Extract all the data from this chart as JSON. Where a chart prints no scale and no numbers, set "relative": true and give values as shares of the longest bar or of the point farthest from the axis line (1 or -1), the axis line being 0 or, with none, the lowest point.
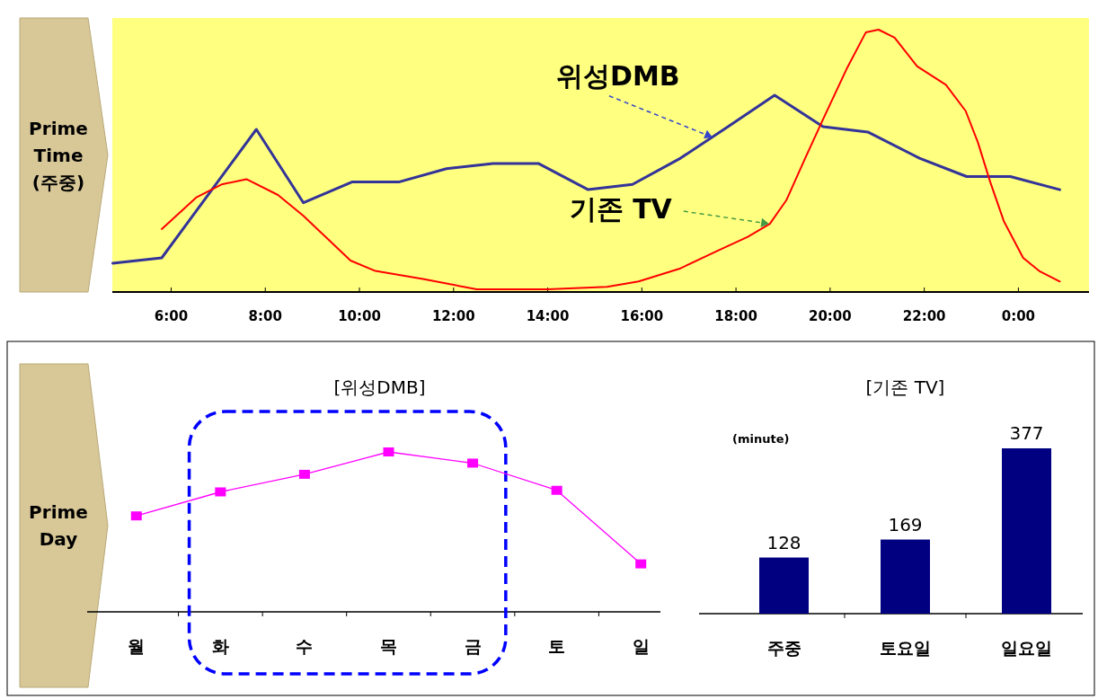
{
  "chart_data": [
    {
      "type": "line",
      "relative": true,
      "xlim": [
        4.75,
        25.5
      ],
      "xticks": [
        {
          "value": 6,
          "label": "6:00"
        },
        {
          "value": 8,
          "label": "8:00"
        },
        {
          "value": 10,
          "label": "10:00"
        },
        {
          "value": 12,
          "label": "12:00"
        },
        {
          "value": 14,
          "label": "14:00"
        },
        {
          "value": 16,
          "label": "16:00"
        },
        {
          "value": 18,
          "label": "18:00"
        },
        {
          "value": 20,
          "label": "20:00"
        },
        {
          "value": 22,
          "label": "22:00"
        },
        {
          "value": 24,
          "label": "0:00"
        }
      ],
      "tick_labels": "x",
      "series": [
        {
          "color": "#333399",
          "x": [
            4.76,
            5.8,
            7.81,
            8.81,
            9.85,
            10.85,
            11.85,
            12.84,
            13.8,
            14.86,
            15.8,
            16.82,
            17.83,
            18.82,
            19.85,
            20.8,
            21.9,
            22.9,
            23.83,
            24.88
          ],
          "values": [
            0.11,
            0.13,
            0.62,
            0.34,
            0.42,
            0.42,
            0.47,
            0.49,
            0.49,
            0.39,
            0.41,
            0.51,
            0.63,
            0.75,
            0.63,
            0.61,
            0.51,
            0.44,
            0.44,
            0.39
          ]
        },
        {
          "color": "#ff0000",
          "x": [
            5.8,
            6.53,
            7.07,
            7.6,
            8.27,
            8.81,
            9.34,
            9.81,
            10.34,
            11.35,
            12.49,
            14.0,
            15.26,
            15.93,
            16.82,
            17.64,
            18.25,
            18.72,
            19.07,
            19.47,
            19.88,
            20.35,
            20.76,
            21.03,
            21.37,
            21.85,
            22.46,
            22.88,
            23.14,
            23.4,
            23.69,
            24.1,
            24.44,
            24.88
          ],
          "values": [
            0.24,
            0.36,
            0.41,
            0.43,
            0.37,
            0.29,
            0.2,
            0.12,
            0.08,
            0.05,
            0.01,
            0.01,
            0.02,
            0.04,
            0.09,
            0.16,
            0.21,
            0.26,
            0.35,
            0.51,
            0.67,
            0.85,
            0.99,
            1,
            0.97,
            0.86,
            0.79,
            0.69,
            0.57,
            0.42,
            0.27,
            0.13,
            0.08,
            0.04
          ]
        }
      ],
      "annotations": [
        "Prime Time (주중)",
        {
          "text": "위성DMB",
          "x": 17.5,
          "y": 0.59
        },
        {
          "text": "기존 TV",
          "x": 18.7,
          "y": 0.26
        }
      ]
    },
    {
      "type": "line",
      "relative": true,
      "title": "[위성DMB]",
      "categories": [
        "월",
        "화",
        "수",
        "목",
        "금",
        "토",
        "일"
      ],
      "tick_labels": "x",
      "marker": "square",
      "line_style": "solid",
      "series": [
        {
          "color": "#ff00ff",
          "values": [
            0.6,
            0.75,
            0.86,
            1,
            0.93,
            0.76,
            0.3
          ]
        }
      ],
      "annotations": [
        "Prime Day"
      ]
    },
    {
      "type": "bar",
      "title": "[기존 TV]",
      "categories": [
        "주중",
        "토요일",
        "일요일"
      ],
      "tick_labels": "x",
      "data_labels": true,
      "series": [
        {
          "color": "#000080",
          "values": [
            128,
            169,
            377
          ]
        }
      ],
      "annotations": [
        "(minute)"
      ]
    }
  ]
}
